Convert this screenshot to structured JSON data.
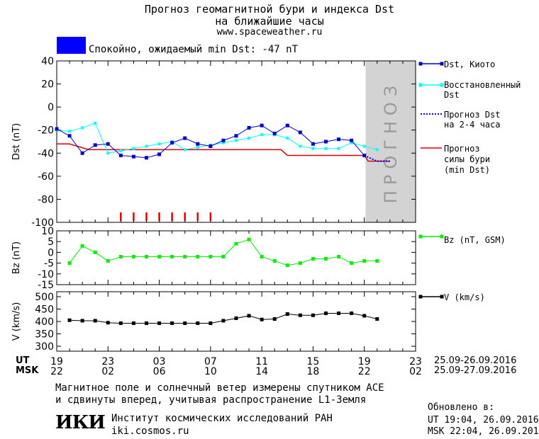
{
  "header": {
    "title_line1": "Прогноз геомагнитной бури и индекса Dst",
    "title_line2": "на ближайшие часы",
    "url": "www.spaceweather.ru",
    "status_color": "#0000ff",
    "status_text": "Спокойно, ожидаемый min Dst: -47 nT"
  },
  "legend": {
    "dst_kyoto": "Dst, Киото",
    "restored_line1": "Восстановленный",
    "restored_line2": "Dst",
    "forecast_line1": "Прогноз Dst",
    "forecast_line2": "на 2-4 часа",
    "storm_line1": "Прогноз",
    "storm_line2": "силы бури",
    "storm_line3": "(min Dst)",
    "bz": "Bz (nT, GSM)",
    "v": "V (km/s)"
  },
  "forecast_band_label": "ПРОГНОЗ",
  "time_axis": {
    "ut_label": "UT",
    "msk_label": "MSK",
    "ut_ticks": [
      "19",
      "23",
      "03",
      "07",
      "11",
      "15",
      "19",
      "23"
    ],
    "msk_ticks": [
      "22",
      "02",
      "06",
      "10",
      "14",
      "18",
      "22",
      "02"
    ],
    "ut_range": "25.09-26.09.2016",
    "msk_range": "25.09-27.09.2016"
  },
  "footer": {
    "note_line1": "Магнитное поле и солнечный ветер измерены спутником ACE",
    "note_line2": "и сдвинуты вперед, учитывая распространение L1-Земля",
    "institute": "Институт космических исследований РАН",
    "site": "iki.cosmos.ru",
    "logo_text": "ИКИ",
    "updated_label": "Обновлено в:",
    "updated_ut": "UT   19:04, 26.09.2016",
    "updated_msk": "MSK 22:04, 26.09.2016"
  },
  "colors": {
    "dst": "#0000cc",
    "restored": "#00ffff",
    "forecast": "#0000ff",
    "storm": "#dd0000",
    "bz": "#00ee00",
    "v": "#000000",
    "forecast_band": "#d3d3d3"
  },
  "chart_data": [
    {
      "type": "line",
      "ylabel": "Dst (nT)",
      "ylim": [
        -100,
        40
      ],
      "yticks": [
        40,
        20,
        0,
        -20,
        -40,
        -60,
        -80,
        -100
      ],
      "x_unit": "hours since 19 UT 25.09",
      "xlim": [
        0,
        28
      ],
      "series": [
        {
          "name": "Dst, Киото",
          "x": [
            0,
            1,
            2,
            3,
            4,
            5,
            6,
            7,
            8,
            9,
            10,
            11,
            12,
            13,
            14,
            15,
            16,
            17,
            18,
            19,
            20,
            21,
            22,
            23,
            24
          ],
          "y": [
            -19,
            -25,
            -40,
            -33,
            -32,
            -42,
            -43,
            -44,
            -41,
            -31,
            -27,
            -32,
            -34,
            -29,
            -25,
            -18,
            -16,
            -23,
            -16,
            -22,
            -32,
            -30,
            -28,
            -29,
            -42
          ]
        },
        {
          "name": "Восстановленный Dst",
          "x": [
            0,
            1,
            2,
            3,
            4,
            5,
            6,
            7,
            8,
            9,
            10,
            11,
            12,
            13,
            14,
            15,
            16,
            17,
            18,
            19,
            20,
            21,
            22,
            23,
            24,
            25
          ],
          "y": [
            -20,
            -21,
            -18,
            -14,
            -40,
            -38,
            -36,
            -34,
            -32,
            -30,
            -37,
            -35,
            -33,
            -31,
            -29,
            -27,
            -24,
            -24,
            -27,
            -34,
            -36,
            -36,
            -36,
            -31,
            -34,
            -37
          ]
        },
        {
          "name": "Прогноз Dst на 2-4 часа",
          "x": [
            24,
            25,
            26
          ],
          "y": [
            -42,
            -47,
            -47
          ]
        },
        {
          "name": "Прогноз силы бури (min Dst)",
          "x": [
            0,
            1,
            2.5,
            17.5,
            18,
            24,
            24.3,
            26
          ],
          "y": [
            -32,
            -32,
            -37,
            -37,
            -42,
            -42,
            -47,
            -47
          ]
        }
      ],
      "markers": {
        "color": "#dd0000",
        "x": [
          5,
          6,
          7,
          8,
          9,
          10,
          11,
          12
        ]
      }
    },
    {
      "type": "line",
      "ylabel": "Bz (nT)",
      "ylim": [
        -15,
        10
      ],
      "yticks": [
        10,
        5,
        0,
        -5,
        -10,
        -15
      ],
      "series": [
        {
          "name": "Bz (nT, GSM)",
          "x": [
            1,
            2,
            3,
            4,
            5,
            6,
            7,
            8,
            9,
            10,
            11,
            12,
            13,
            14,
            15,
            16,
            17,
            18,
            19,
            20,
            21,
            22,
            23,
            24,
            25
          ],
          "y": [
            -5,
            3,
            0,
            -4,
            -2,
            -2,
            -2,
            -2,
            -2,
            -2,
            -2,
            -2,
            -2,
            4,
            6,
            -2,
            -4,
            -6,
            -5,
            -3,
            -3,
            -2,
            -5,
            -4,
            -4
          ]
        }
      ]
    },
    {
      "type": "line",
      "ylabel": "V (km/s)",
      "ylim": [
        280,
        520
      ],
      "yticks": [
        500,
        450,
        400,
        350,
        300
      ],
      "series": [
        {
          "name": "V (km/s)",
          "x": [
            1,
            2,
            3,
            4,
            5,
            6,
            7,
            8,
            9,
            10,
            11,
            12,
            13,
            14,
            15,
            16,
            17,
            18,
            19,
            20,
            21,
            22,
            23,
            24,
            25
          ],
          "y": [
            405,
            403,
            403,
            395,
            393,
            393,
            393,
            393,
            393,
            393,
            393,
            393,
            403,
            413,
            423,
            408,
            410,
            430,
            425,
            425,
            433,
            433,
            433,
            423,
            410
          ]
        }
      ]
    }
  ]
}
